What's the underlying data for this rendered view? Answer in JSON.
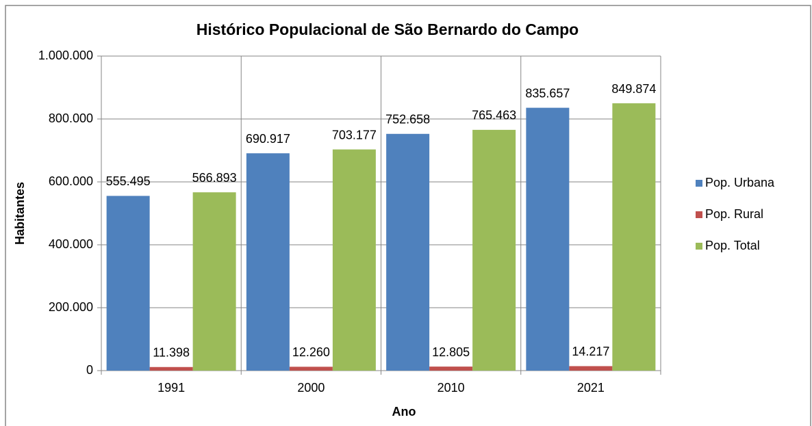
{
  "chart_data": {
    "type": "bar",
    "title": "Histórico Populacional de São Bernardo do Campo",
    "x_label": "Ano",
    "y_label": "Habitantes",
    "categories": [
      "1991",
      "2000",
      "2010",
      "2021"
    ],
    "series": [
      {
        "name": "Pop. Urbana",
        "color": "#4f81bd",
        "values": [
          555495,
          690917,
          752658,
          835657
        ],
        "value_labels": [
          "555.495",
          "690.917",
          "752.658",
          "835.657"
        ]
      },
      {
        "name": "Pop. Rural",
        "color": "#c0504d",
        "values": [
          11398,
          12260,
          12805,
          14217
        ],
        "value_labels": [
          "11.398",
          "12.260",
          "12.805",
          "14.217"
        ]
      },
      {
        "name": "Pop. Total",
        "color": "#9bbb59",
        "values": [
          566893,
          703177,
          765463,
          849874
        ],
        "value_labels": [
          "566.893",
          "703.177",
          "765.463",
          "849.874"
        ]
      }
    ],
    "ylim": [
      0,
      1000000
    ],
    "yticks": [
      0,
      {
        "value": 200000,
        "label": "200.000"
      },
      {
        "value": 400000,
        "label": "400.000"
      },
      {
        "value": 600000,
        "label": "600.000"
      },
      {
        "value": 800000,
        "label": "800.000"
      },
      {
        "value": 1000000,
        "label": "1.000.000"
      }
    ],
    "grid": true,
    "legend": "right"
  }
}
